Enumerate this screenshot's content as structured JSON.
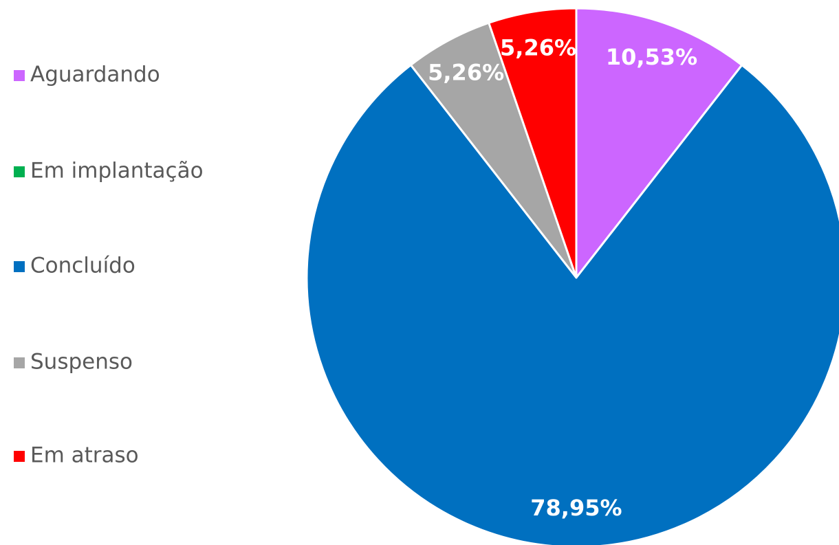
{
  "chart_data": {
    "type": "pie",
    "categories": [
      "Aguardando",
      "Em implantação",
      "Concluído",
      "Suspenso",
      "Em atraso"
    ],
    "values": [
      10.53,
      0,
      78.95,
      5.26,
      5.26
    ],
    "value_labels": [
      "10,53%",
      null,
      "78,95%",
      "5,26%",
      "5,26%"
    ],
    "colors": [
      "#cc66ff",
      "#00b050",
      "#0070c0",
      "#a6a6a6",
      "#ff0000"
    ],
    "legend": "left"
  }
}
